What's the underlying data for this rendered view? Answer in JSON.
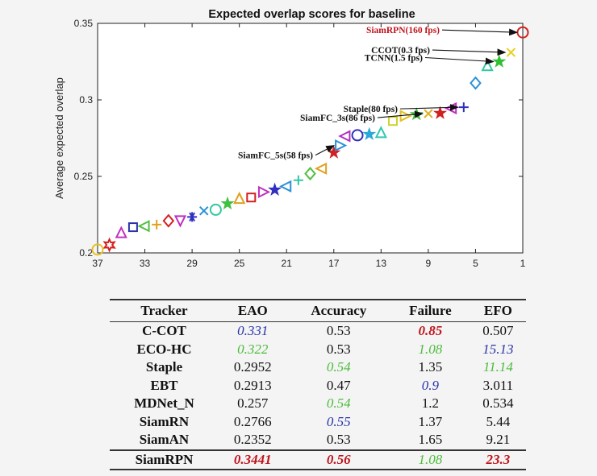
{
  "chart_data": {
    "type": "scatter",
    "title": "Expected overlap scores for baseline",
    "xlabel": "",
    "ylabel": "Average expected overlap",
    "x_ticks": [
      "37",
      "33",
      "29",
      "25",
      "21",
      "17",
      "13",
      "9",
      "5",
      "1"
    ],
    "y_ticks": [
      "0.2",
      "0.25",
      "0.3",
      "0.35"
    ],
    "xlim": [
      37,
      1
    ],
    "ylim": [
      0.2,
      0.35
    ],
    "points": [
      {
        "rank": 1,
        "eao": 0.3441,
        "marker": "circle",
        "color": "#d42020"
      },
      {
        "rank": 2,
        "eao": 0.331,
        "marker": "x",
        "color": "#e8d020"
      },
      {
        "rank": 3,
        "eao": 0.325,
        "marker": "star",
        "color": "#30c030"
      },
      {
        "rank": 4,
        "eao": 0.322,
        "marker": "triangle",
        "color": "#30c8a0"
      },
      {
        "rank": 5,
        "eao": 0.311,
        "marker": "diamond",
        "color": "#2a90d8"
      },
      {
        "rank": 6,
        "eao": 0.2952,
        "marker": "plus",
        "color": "#3030c0"
      },
      {
        "rank": 7,
        "eao": 0.2945,
        "marker": "triangle-left",
        "color": "#c030c0"
      },
      {
        "rank": 8,
        "eao": 0.2913,
        "marker": "star",
        "color": "#d02020"
      },
      {
        "rank": 9,
        "eao": 0.291,
        "marker": "x",
        "color": "#e0b020"
      },
      {
        "rank": 10,
        "eao": 0.2905,
        "marker": "star",
        "color": "#40c040"
      },
      {
        "rank": 11,
        "eao": 0.2895,
        "marker": "triangle-right",
        "color": "#e0c020"
      },
      {
        "rank": 12,
        "eao": 0.2862,
        "marker": "square",
        "color": "#d0d030"
      },
      {
        "rank": 13,
        "eao": 0.2782,
        "marker": "triangle",
        "color": "#30c8b0"
      },
      {
        "rank": 14,
        "eao": 0.2775,
        "marker": "star",
        "color": "#2aa8d8"
      },
      {
        "rank": 15,
        "eao": 0.2769,
        "marker": "circle",
        "color": "#3030c0"
      },
      {
        "rank": 16,
        "eao": 0.2763,
        "marker": "triangle-left",
        "color": "#b030c0"
      },
      {
        "rank": 17,
        "eao": 0.2655,
        "marker": "star",
        "color": "#d42020"
      },
      {
        "rank": 16.5,
        "eao": 0.2702,
        "marker": "triangle-right",
        "color": "#2a90d8"
      },
      {
        "rank": 18,
        "eao": 0.2551,
        "marker": "triangle-left",
        "color": "#e0a020"
      },
      {
        "rank": 19,
        "eao": 0.2518,
        "marker": "diamond",
        "color": "#50c040"
      },
      {
        "rank": 20,
        "eao": 0.2475,
        "marker": "plus",
        "color": "#30c8a0"
      },
      {
        "rank": 21,
        "eao": 0.2435,
        "marker": "triangle-left",
        "color": "#2a90d8"
      },
      {
        "rank": 22,
        "eao": 0.2412,
        "marker": "star",
        "color": "#3030c0"
      },
      {
        "rank": 23,
        "eao": 0.2398,
        "marker": "triangle-right",
        "color": "#c030c0"
      },
      {
        "rank": 24,
        "eao": 0.2362,
        "marker": "square",
        "color": "#d42020"
      },
      {
        "rank": 25,
        "eao": 0.2352,
        "marker": "triangle",
        "color": "#e0a020"
      },
      {
        "rank": 26,
        "eao": 0.2322,
        "marker": "star",
        "color": "#40c040"
      },
      {
        "rank": 27,
        "eao": 0.2282,
        "marker": "circle",
        "color": "#30c8a0"
      },
      {
        "rank": 28,
        "eao": 0.2275,
        "marker": "x",
        "color": "#2a90d8"
      },
      {
        "rank": 29,
        "eao": 0.2235,
        "marker": "asterisk",
        "color": "#3030c0"
      },
      {
        "rank": 30,
        "eao": 0.2214,
        "marker": "triangle-down",
        "color": "#c030c0"
      },
      {
        "rank": 31,
        "eao": 0.221,
        "marker": "diamond",
        "color": "#d42020"
      },
      {
        "rank": 32,
        "eao": 0.2185,
        "marker": "plus",
        "color": "#e0a020"
      },
      {
        "rank": 33,
        "eao": 0.2175,
        "marker": "triangle-left",
        "color": "#50c040"
      },
      {
        "rank": 34,
        "eao": 0.2168,
        "marker": "square",
        "color": "#2a34a8"
      },
      {
        "rank": 35,
        "eao": 0.2128,
        "marker": "triangle",
        "color": "#c030c0"
      },
      {
        "rank": 36,
        "eao": 0.2052,
        "marker": "hexagram",
        "color": "#d42020"
      },
      {
        "rank": 37,
        "eao": 0.2022,
        "marker": "circle",
        "color": "#e8c020"
      }
    ],
    "annotations": [
      {
        "text": "SiamRPN(160 fps)",
        "rank": 1,
        "eao": 0.3441,
        "color": "#c0141c"
      },
      {
        "text": "CCOT(0.3 fps)",
        "rank": 2,
        "eao": 0.331,
        "color": "#111111"
      },
      {
        "text": "TCNN(1.5 fps)",
        "rank": 3,
        "eao": 0.325,
        "color": "#111111"
      },
      {
        "text": "Staple(80 fps)",
        "rank": 6,
        "eao": 0.2952,
        "color": "#111111"
      },
      {
        "text": "SiamFC_3s(86 fps)",
        "rank": 9,
        "eao": 0.291,
        "color": "#111111"
      },
      {
        "text": "SiamFC_5s(58 fps)",
        "rank": 16.5,
        "eao": 0.2702,
        "color": "#111111"
      }
    ]
  },
  "table": {
    "headers": [
      "Tracker",
      "EAO",
      "Accuracy",
      "Failure",
      "EFO"
    ],
    "rows": [
      [
        {
          "v": "C-COT"
        },
        {
          "v": "0.331",
          "s": "blue"
        },
        {
          "v": "0.53"
        },
        {
          "v": "0.85",
          "s": "red"
        },
        {
          "v": "0.507"
        }
      ],
      [
        {
          "v": "ECO-HC"
        },
        {
          "v": "0.322",
          "s": "green"
        },
        {
          "v": "0.53"
        },
        {
          "v": "1.08",
          "s": "green"
        },
        {
          "v": "15.13",
          "s": "blue"
        }
      ],
      [
        {
          "v": "Staple"
        },
        {
          "v": "0.2952"
        },
        {
          "v": "0.54",
          "s": "green"
        },
        {
          "v": "1.35"
        },
        {
          "v": "11.14",
          "s": "green"
        }
      ],
      [
        {
          "v": "EBT"
        },
        {
          "v": "0.2913"
        },
        {
          "v": "0.47"
        },
        {
          "v": "0.9",
          "s": "blue"
        },
        {
          "v": "3.011"
        }
      ],
      [
        {
          "v": "MDNet_N"
        },
        {
          "v": "0.257"
        },
        {
          "v": "0.54",
          "s": "green"
        },
        {
          "v": "1.2"
        },
        {
          "v": "0.534"
        }
      ],
      [
        {
          "v": "SiamRN"
        },
        {
          "v": "0.2766"
        },
        {
          "v": "0.55",
          "s": "blue"
        },
        {
          "v": "1.37"
        },
        {
          "v": "5.44"
        }
      ],
      [
        {
          "v": "SiamAN"
        },
        {
          "v": "0.2352"
        },
        {
          "v": "0.53"
        },
        {
          "v": "1.65"
        },
        {
          "v": "9.21"
        }
      ],
      [
        {
          "v": "SiamRPN"
        },
        {
          "v": "0.3441",
          "s": "red"
        },
        {
          "v": "0.56",
          "s": "red"
        },
        {
          "v": "1.08",
          "s": "green"
        },
        {
          "v": "23.3",
          "s": "red"
        }
      ]
    ]
  }
}
